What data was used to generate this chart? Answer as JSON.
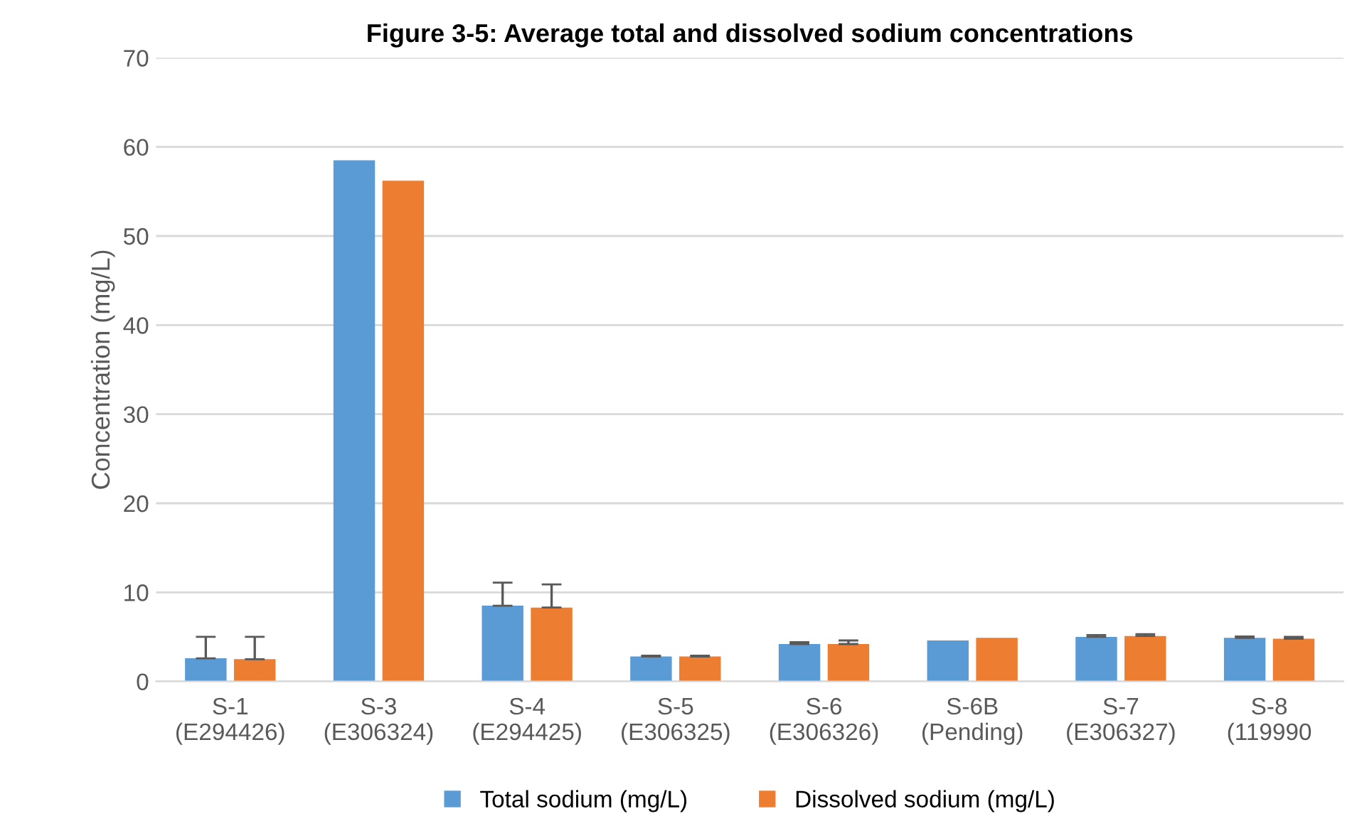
{
  "chart_data": {
    "type": "bar",
    "title": "Figure 3-5: Average total and dissolved sodium concentrations",
    "ylabel": "Concentration (mg/L)",
    "categories": [
      "S-1\n(E294426)",
      "S-3\n(E306324)",
      "S-4\n(E294425)",
      "S-5\n(E306325)",
      "S-6\n(E306326)",
      "S-6B\n(Pending)",
      "S-7\n(E306327)",
      "S-8\n(119990"
    ],
    "series": [
      {
        "name": "Total sodium (mg/L)",
        "color": "#5b9bd5",
        "values": [
          2.6,
          58.5,
          8.5,
          2.8,
          4.2,
          4.6,
          5.0,
          4.9
        ],
        "errors": [
          2.4,
          null,
          2.6,
          0.1,
          0.2,
          null,
          0.2,
          0.15
        ]
      },
      {
        "name": "Dissolved sodium (mg/L)",
        "color": "#ed7d31",
        "values": [
          2.5,
          56.2,
          8.3,
          2.8,
          4.2,
          4.9,
          5.1,
          4.8
        ],
        "errors": [
          2.5,
          null,
          2.6,
          0.1,
          0.4,
          null,
          0.2,
          0.2
        ]
      }
    ],
    "ylim": [
      0,
      70
    ],
    "yticks": [
      0,
      10,
      20,
      30,
      40,
      50,
      60,
      70
    ],
    "grid": "y",
    "legend": "bottom"
  }
}
